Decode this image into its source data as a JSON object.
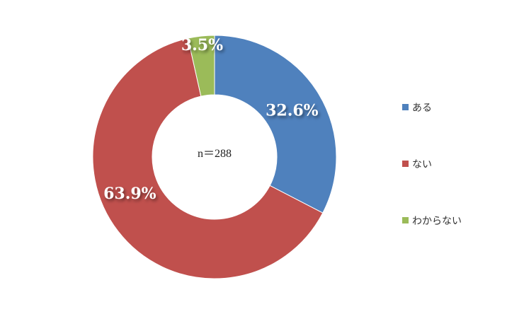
{
  "chart_data": {
    "type": "pie",
    "variant": "donut",
    "center_label": "n＝288",
    "categories": [
      "ある",
      "ない",
      "わからない"
    ],
    "values": [
      32.6,
      63.9,
      3.5
    ],
    "data_labels": [
      "32.6%",
      "63.9%",
      "3.5%"
    ],
    "colors": [
      "#4f81bd",
      "#c0504d",
      "#9bbb59"
    ],
    "legend_position": "right"
  }
}
